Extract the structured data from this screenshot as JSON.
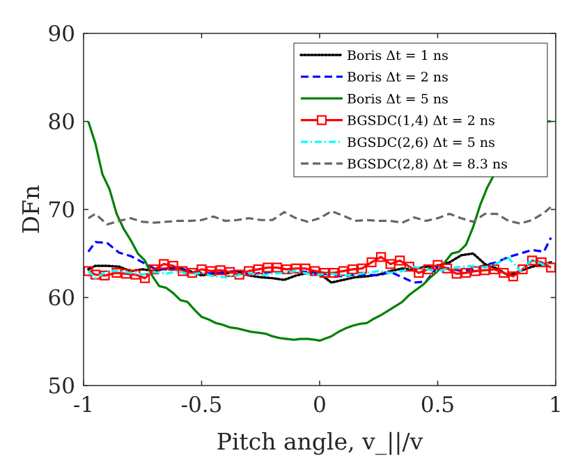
{
  "chart_data": {
    "type": "line",
    "title": "",
    "xlabel": "Pitch angle, v_||/v",
    "ylabel": "DFn",
    "xlim": [
      -1,
      1
    ],
    "ylim": [
      50,
      90
    ],
    "xticks": [
      -1,
      -0.5,
      0,
      0.5,
      1
    ],
    "xtick_labels": [
      "-1",
      "-0.5",
      "0",
      "0.5",
      "1"
    ],
    "yticks": [
      50,
      60,
      70,
      80,
      90
    ],
    "ytick_labels": [
      "50",
      "60",
      "70",
      "80",
      "90"
    ],
    "grid": false,
    "legend_position": "top-right",
    "series": [
      {
        "name": "Boris Δt = 1 ns",
        "color": "#000000",
        "style": "dotted",
        "marker": "none",
        "x": [
          -0.98,
          -0.95,
          -0.9,
          -0.85,
          -0.8,
          -0.75,
          -0.7,
          -0.65,
          -0.6,
          -0.55,
          -0.5,
          -0.45,
          -0.4,
          -0.35,
          -0.3,
          -0.25,
          -0.2,
          -0.15,
          -0.1,
          -0.05,
          0.0,
          0.05,
          0.1,
          0.15,
          0.2,
          0.25,
          0.3,
          0.35,
          0.4,
          0.45,
          0.5,
          0.55,
          0.6,
          0.65,
          0.7,
          0.75,
          0.8,
          0.85,
          0.9,
          0.95,
          0.98
        ],
        "y": [
          63.2,
          63.6,
          63.6,
          63.5,
          63.0,
          63.2,
          63.0,
          63.3,
          63.4,
          63.0,
          62.5,
          62.8,
          62.7,
          63.0,
          62.5,
          62.3,
          62.2,
          62.0,
          62.5,
          62.8,
          62.7,
          61.7,
          62.0,
          62.3,
          62.4,
          62.6,
          63.0,
          63.3,
          63.2,
          63.5,
          63.6,
          64.0,
          64.8,
          65.0,
          63.8,
          63.3,
          62.5,
          63.0,
          63.5,
          63.8,
          64.0
        ]
      },
      {
        "name": "Boris Δt = 2 ns",
        "color": "#0000ff",
        "style": "dashed",
        "marker": "none",
        "x": [
          -0.98,
          -0.95,
          -0.9,
          -0.85,
          -0.8,
          -0.75,
          -0.7,
          -0.65,
          -0.6,
          -0.55,
          -0.5,
          -0.45,
          -0.4,
          -0.35,
          -0.3,
          -0.25,
          -0.2,
          -0.15,
          -0.1,
          -0.05,
          0.0,
          0.05,
          0.1,
          0.15,
          0.2,
          0.25,
          0.3,
          0.35,
          0.4,
          0.45,
          0.5,
          0.55,
          0.6,
          0.65,
          0.7,
          0.75,
          0.8,
          0.85,
          0.9,
          0.95,
          0.98
        ],
        "y": [
          65.2,
          66.3,
          66.2,
          65.1,
          64.7,
          64.0,
          63.3,
          63.2,
          63.4,
          63.0,
          62.8,
          62.7,
          62.9,
          63.0,
          62.6,
          62.8,
          62.9,
          62.8,
          63.0,
          62.9,
          62.8,
          62.5,
          62.4,
          62.6,
          62.6,
          62.5,
          62.9,
          62.3,
          61.7,
          61.8,
          63.5,
          63.3,
          63.0,
          63.2,
          63.7,
          64.0,
          64.6,
          65.0,
          65.4,
          65.2,
          66.8
        ]
      },
      {
        "name": "Boris Δt = 5 ns",
        "color": "#008000",
        "style": "solid",
        "marker": "none",
        "x": [
          -0.98,
          -0.95,
          -0.92,
          -0.89,
          -0.86,
          -0.83,
          -0.8,
          -0.77,
          -0.74,
          -0.71,
          -0.68,
          -0.65,
          -0.62,
          -0.59,
          -0.56,
          -0.53,
          -0.5,
          -0.47,
          -0.44,
          -0.41,
          -0.38,
          -0.35,
          -0.32,
          -0.29,
          -0.26,
          -0.23,
          -0.2,
          -0.17,
          -0.14,
          -0.11,
          -0.08,
          -0.05,
          -0.02,
          0.0,
          0.02,
          0.05,
          0.08,
          0.11,
          0.14,
          0.17,
          0.2,
          0.23,
          0.26,
          0.29,
          0.32,
          0.35,
          0.38,
          0.41,
          0.44,
          0.47,
          0.5,
          0.53,
          0.56,
          0.59,
          0.62,
          0.65,
          0.68,
          0.71,
          0.74,
          0.77,
          0.8,
          0.83,
          0.86,
          0.89,
          0.92,
          0.95,
          0.98
        ],
        "y": [
          80.0,
          77.5,
          74.0,
          72.3,
          69.5,
          67.8,
          66.5,
          65.0,
          64.2,
          62.5,
          61.3,
          61.1,
          60.5,
          59.7,
          59.5,
          58.6,
          57.8,
          57.5,
          57.1,
          56.9,
          56.6,
          56.5,
          56.3,
          56.1,
          56.0,
          55.9,
          55.6,
          55.4,
          55.3,
          55.2,
          55.3,
          55.3,
          55.2,
          55.1,
          55.3,
          55.6,
          56.1,
          56.5,
          56.8,
          57.0,
          57.1,
          57.6,
          58.0,
          58.5,
          59.0,
          59.5,
          60.3,
          60.9,
          61.5,
          62.3,
          63.0,
          64.0,
          65.0,
          65.2,
          66.0,
          68.0,
          70.5,
          72.5,
          74.0,
          76.0,
          77.5,
          78.2,
          79.2,
          79.8,
          80.0,
          80.0,
          80.0
        ]
      },
      {
        "name": "BGSDC(1,4) Δt = 2 ns",
        "color": "#ff0000",
        "style": "solid",
        "marker": "square",
        "x": [
          -0.98,
          -0.95,
          -0.91,
          -0.86,
          -0.82,
          -0.78,
          -0.74,
          -0.7,
          -0.66,
          -0.62,
          -0.58,
          -0.54,
          -0.5,
          -0.46,
          -0.42,
          -0.38,
          -0.34,
          -0.3,
          -0.26,
          -0.22,
          -0.18,
          -0.14,
          -0.1,
          -0.06,
          -0.02,
          0.02,
          0.06,
          0.1,
          0.14,
          0.18,
          0.22,
          0.26,
          0.3,
          0.34,
          0.38,
          0.42,
          0.46,
          0.5,
          0.54,
          0.58,
          0.62,
          0.66,
          0.7,
          0.74,
          0.78,
          0.82,
          0.86,
          0.9,
          0.94,
          0.98
        ],
        "y": [
          63.0,
          62.6,
          62.5,
          62.8,
          62.7,
          62.6,
          62.2,
          63.2,
          63.8,
          63.6,
          63.0,
          62.8,
          63.2,
          63.0,
          63.1,
          62.9,
          62.6,
          63.0,
          63.2,
          63.4,
          63.4,
          63.2,
          63.3,
          63.3,
          63.0,
          62.8,
          62.8,
          63.0,
          63.2,
          63.3,
          64.0,
          64.6,
          63.8,
          64.2,
          63.5,
          62.8,
          63.2,
          63.7,
          63.3,
          62.7,
          62.8,
          63.0,
          63.1,
          63.2,
          62.8,
          62.4,
          63.2,
          64.2,
          64.0,
          63.4
        ]
      },
      {
        "name": "BGSDC(2,6) Δt = 5 ns",
        "color": "#00ffff",
        "style": "dashdot",
        "marker": "none",
        "x": [
          -0.98,
          -0.95,
          -0.9,
          -0.85,
          -0.8,
          -0.75,
          -0.7,
          -0.65,
          -0.6,
          -0.55,
          -0.5,
          -0.45,
          -0.4,
          -0.35,
          -0.3,
          -0.25,
          -0.2,
          -0.15,
          -0.1,
          -0.05,
          0.0,
          0.05,
          0.1,
          0.15,
          0.2,
          0.25,
          0.3,
          0.35,
          0.4,
          0.45,
          0.5,
          0.55,
          0.6,
          0.65,
          0.7,
          0.75,
          0.8,
          0.85,
          0.9,
          0.95,
          0.98
        ],
        "y": [
          63.0,
          62.2,
          63.0,
          63.0,
          62.8,
          62.6,
          62.9,
          62.7,
          63.0,
          62.6,
          62.8,
          62.4,
          62.3,
          62.5,
          62.8,
          62.5,
          62.7,
          62.8,
          63.0,
          62.7,
          62.6,
          62.7,
          62.5,
          62.6,
          62.8,
          63.0,
          62.8,
          63.0,
          63.5,
          63.2,
          63.0,
          63.3,
          63.5,
          63.6,
          63.4,
          63.9,
          64.5,
          63.0,
          64.3,
          63.7,
          64.0
        ]
      },
      {
        "name": "BGSDC(2,8) Δt = 8.3 ns",
        "color": "#666666",
        "style": "dashed",
        "marker": "none",
        "x": [
          -0.98,
          -0.95,
          -0.9,
          -0.85,
          -0.8,
          -0.75,
          -0.7,
          -0.65,
          -0.6,
          -0.55,
          -0.5,
          -0.45,
          -0.4,
          -0.35,
          -0.3,
          -0.25,
          -0.2,
          -0.15,
          -0.1,
          -0.05,
          0.0,
          0.05,
          0.1,
          0.15,
          0.2,
          0.25,
          0.3,
          0.35,
          0.4,
          0.45,
          0.5,
          0.55,
          0.6,
          0.65,
          0.7,
          0.75,
          0.8,
          0.85,
          0.9,
          0.95,
          0.98
        ],
        "y": [
          69.0,
          69.5,
          68.3,
          68.7,
          69.0,
          68.6,
          68.5,
          68.6,
          68.7,
          68.7,
          68.8,
          69.2,
          68.7,
          68.8,
          69.0,
          68.8,
          68.8,
          69.7,
          69.0,
          68.6,
          69.0,
          69.8,
          69.3,
          68.7,
          68.8,
          68.7,
          68.7,
          68.5,
          69.1,
          68.7,
          69.0,
          69.5,
          69.0,
          68.6,
          69.5,
          69.5,
          68.7,
          68.4,
          68.8,
          69.6,
          70.3
        ]
      }
    ]
  }
}
